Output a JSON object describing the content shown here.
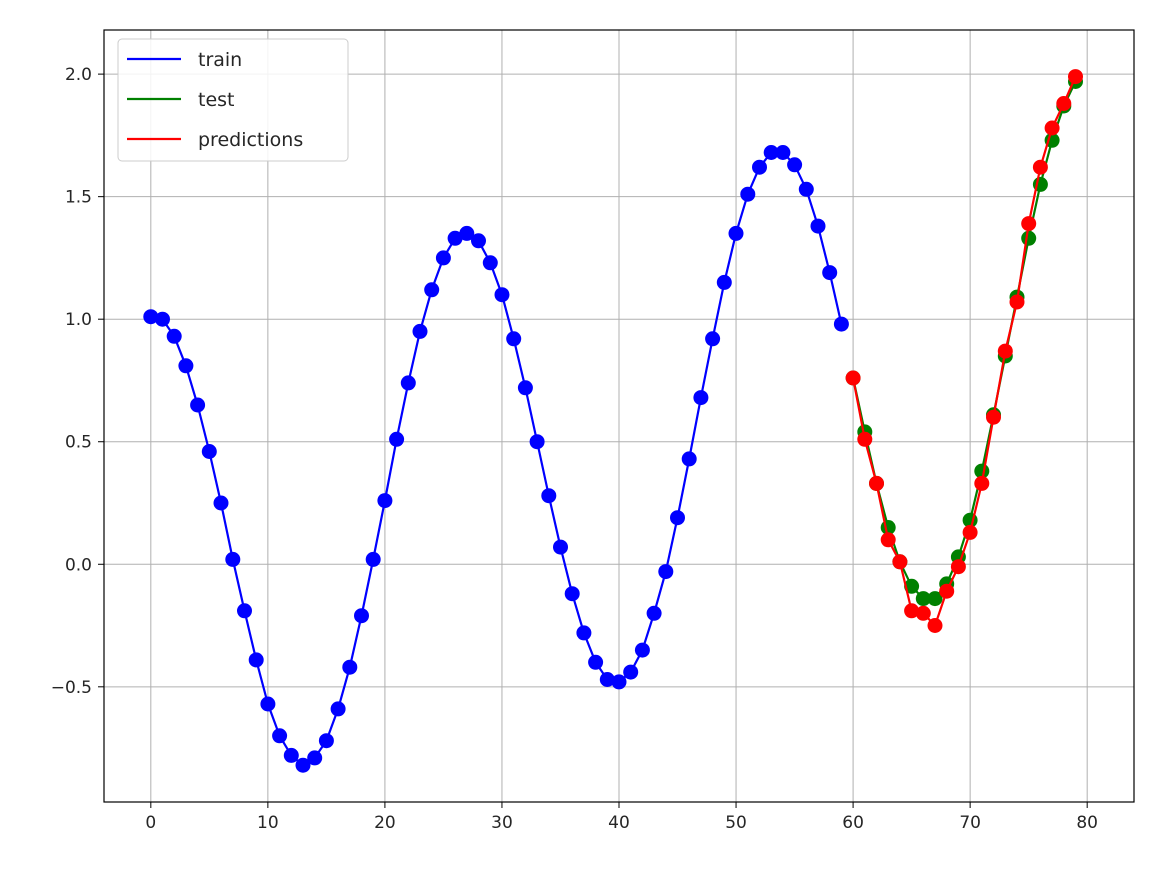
{
  "chart_data": {
    "type": "line",
    "title": "",
    "xlabel": "",
    "ylabel": "",
    "xlim": [
      -4,
      84
    ],
    "ylim": [
      -0.97,
      2.18
    ],
    "grid": true,
    "markers": "circle",
    "xticks": [
      0,
      10,
      20,
      30,
      40,
      50,
      60,
      70,
      80
    ],
    "xtick_labels": [
      "0",
      "10",
      "20",
      "30",
      "40",
      "50",
      "60",
      "70",
      "80"
    ],
    "yticks": [
      -0.5,
      0.0,
      0.5,
      1.0,
      1.5,
      2.0
    ],
    "ytick_labels": [
      "−0.5",
      "0.0",
      "0.5",
      "1.0",
      "1.5",
      "2.0"
    ],
    "legend": {
      "position": "top-left",
      "entries": [
        "train",
        "test",
        "predictions"
      ]
    },
    "series": [
      {
        "name": "train",
        "color": "#0000ff",
        "x": [
          0,
          1,
          2,
          3,
          4,
          5,
          6,
          7,
          8,
          9,
          10,
          11,
          12,
          13,
          14,
          15,
          16,
          17,
          18,
          19,
          20,
          21,
          22,
          23,
          24,
          25,
          26,
          27,
          28,
          29,
          30,
          31,
          32,
          33,
          34,
          35,
          36,
          37,
          38,
          39,
          40,
          41,
          42,
          43,
          44,
          45,
          46,
          47,
          48,
          49,
          50,
          51,
          52,
          53,
          54,
          55,
          56,
          57,
          58,
          59
        ],
        "y": [
          1.01,
          1.0,
          0.93,
          0.81,
          0.65,
          0.46,
          0.25,
          0.02,
          -0.19,
          -0.39,
          -0.57,
          -0.7,
          -0.78,
          -0.82,
          -0.79,
          -0.72,
          -0.59,
          -0.42,
          -0.21,
          0.02,
          0.26,
          0.51,
          0.74,
          0.95,
          1.12,
          1.25,
          1.33,
          1.35,
          1.32,
          1.23,
          1.1,
          0.92,
          0.72,
          0.5,
          0.28,
          0.07,
          -0.12,
          -0.28,
          -0.4,
          -0.47,
          -0.48,
          -0.44,
          -0.35,
          -0.2,
          -0.03,
          0.19,
          0.43,
          0.68,
          0.92,
          1.15,
          1.35,
          1.51,
          1.62,
          1.68,
          1.68,
          1.63,
          1.53,
          1.38,
          1.19,
          0.98
        ]
      },
      {
        "name": "test",
        "color": "#008000",
        "x": [
          60,
          61,
          62,
          63,
          64,
          65,
          66,
          67,
          68,
          69,
          70,
          71,
          72,
          73,
          74,
          75,
          76,
          77,
          78,
          79
        ],
        "y": [
          0.76,
          0.54,
          0.33,
          0.15,
          0.01,
          -0.09,
          -0.14,
          -0.14,
          -0.08,
          0.03,
          0.18,
          0.38,
          0.61,
          0.85,
          1.09,
          1.33,
          1.55,
          1.73,
          1.87,
          1.97
        ]
      },
      {
        "name": "predictions",
        "color": "#ff0000",
        "x": [
          60,
          61,
          62,
          63,
          64,
          65,
          66,
          67,
          68,
          69,
          70,
          71,
          72,
          73,
          74,
          75,
          76,
          77,
          78,
          79
        ],
        "y": [
          0.76,
          0.51,
          0.33,
          0.1,
          0.01,
          -0.19,
          -0.2,
          -0.25,
          -0.11,
          -0.01,
          0.13,
          0.33,
          0.6,
          0.87,
          1.07,
          1.39,
          1.62,
          1.78,
          1.88,
          1.99
        ]
      }
    ]
  }
}
